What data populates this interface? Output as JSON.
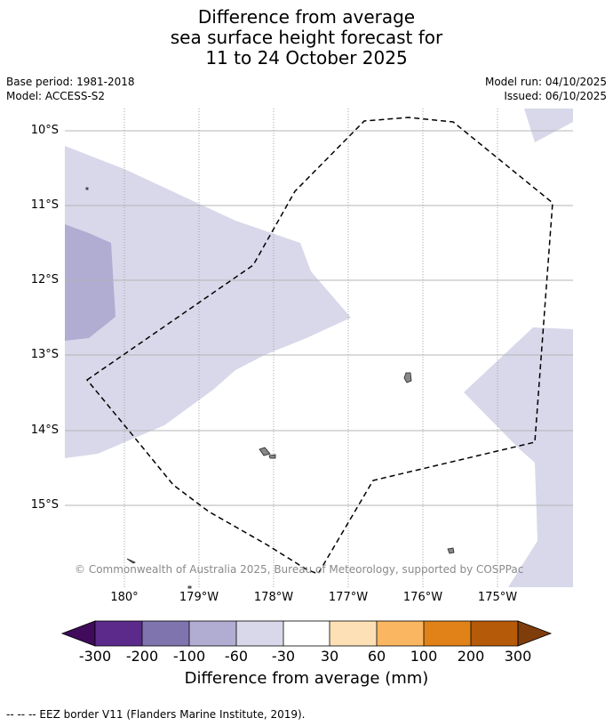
{
  "title": {
    "line1": "Difference from average",
    "line2": "sea surface height forecast for",
    "line3": "11 to 24 October 2025"
  },
  "meta": {
    "base_period": "Base period: 1981-2018",
    "model": "Model: ACCESS-S2",
    "model_run": "Model run: 04/10/2025",
    "issued": "Issued: 06/10/2025"
  },
  "map": {
    "lat_labels": [
      "10°S",
      "11°S",
      "12°S",
      "13°S",
      "14°S",
      "15°S"
    ],
    "lon_labels": [
      "180°",
      "179°W",
      "178°W",
      "177°W",
      "176°W",
      "175°W"
    ],
    "copyright": "© Commonwealth of Australia 2025, Bureau of Meteorology, supported by COSPPac",
    "colors": {
      "neg_30_60": "#d8d8ea",
      "neg_60_100": "#b1acd2",
      "eez_border": "#000000",
      "land": "#888888",
      "graticule": "#b5b5b5"
    }
  },
  "colorbar": {
    "labels": [
      "-300",
      "-200",
      "-100",
      "-60",
      "-30",
      "30",
      "60",
      "100",
      "200",
      "300"
    ],
    "colors": [
      "#3f0b5a",
      "#5b2a8a",
      "#8074ae",
      "#b1acd2",
      "#d8d8ea",
      "#ffffff",
      "#fde0b5",
      "#fbb661",
      "#e08217",
      "#b55a08",
      "#7f3d0c"
    ],
    "title": "Difference from average (mm)"
  },
  "footnote": "--  --  -- EEZ border V11 (Flanders Marine Institute, 2019)."
}
